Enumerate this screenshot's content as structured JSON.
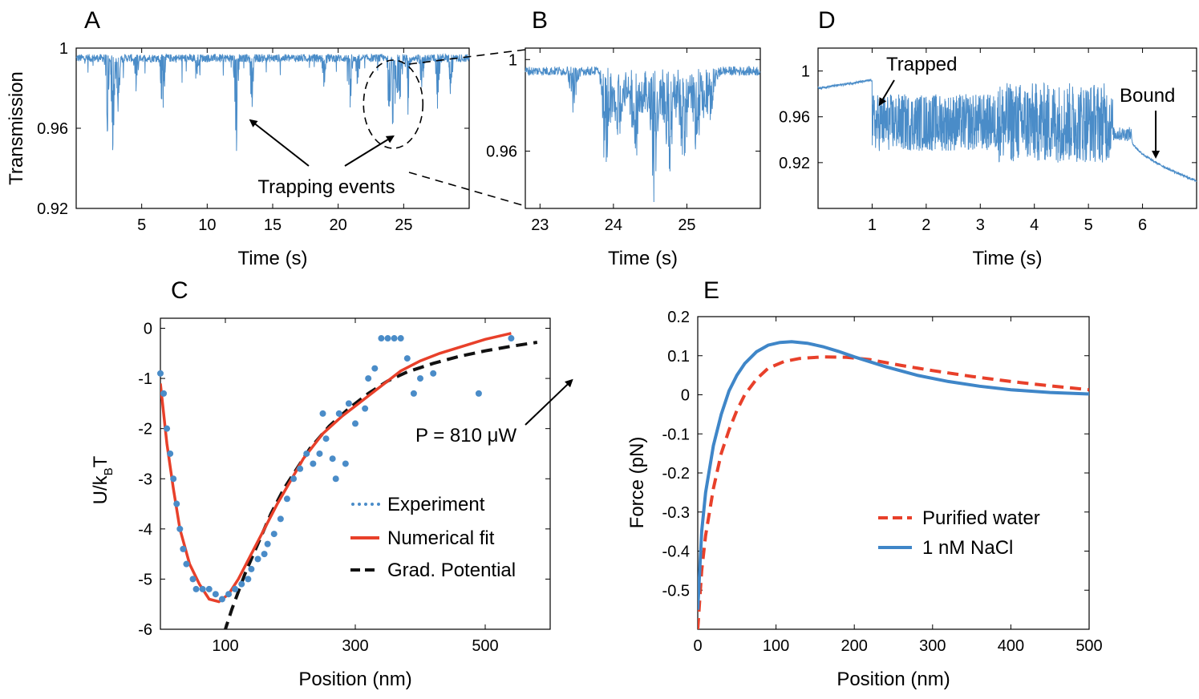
{
  "colors": {
    "trace": "#4a8cc8",
    "fit": "#e8402a",
    "potential": "#111111",
    "force_water": "#e8402a",
    "force_nacl": "#3f86c8"
  },
  "chart_data": [
    {
      "id": "A",
      "type": "line",
      "letter": "A",
      "xlabel": "Time (s)",
      "ylabel": "Transmission",
      "xlim": [
        0,
        30
      ],
      "ylim": [
        0.92,
        1.0
      ],
      "xticks": [
        5,
        10,
        15,
        20,
        25
      ],
      "yticks": [
        0.92,
        0.96,
        1
      ],
      "ytick_labels": [
        "0.92",
        "0.96",
        "1"
      ],
      "baseline": 0.995,
      "events": [
        {
          "t": 2.4,
          "depth": 0.038
        },
        {
          "t": 2.8,
          "depth": 0.045
        },
        {
          "t": 3.2,
          "depth": 0.03
        },
        {
          "t": 4.6,
          "depth": 0.02
        },
        {
          "t": 6.6,
          "depth": 0.05
        },
        {
          "t": 9.2,
          "depth": 0.012
        },
        {
          "t": 12.2,
          "depth": 0.06
        },
        {
          "t": 13.4,
          "depth": 0.025
        },
        {
          "t": 18.9,
          "depth": 0.015
        },
        {
          "t": 20.9,
          "depth": 0.027
        },
        {
          "t": 21.5,
          "depth": 0.02
        },
        {
          "t": 23.9,
          "depth": 0.03
        },
        {
          "t": 24.2,
          "depth": 0.038
        },
        {
          "t": 24.6,
          "depth": 0.04
        },
        {
          "t": 25.3,
          "depth": 0.03
        },
        {
          "t": 26.4,
          "depth": 0.02
        },
        {
          "t": 27.6,
          "depth": 0.025
        },
        {
          "t": 28.6,
          "depth": 0.018
        }
      ],
      "annotation": "Trapping events",
      "arrow_targets": [
        {
          "t": 13.3,
          "v": 0.964
        },
        {
          "t": 24.2,
          "v": 0.956
        }
      ]
    },
    {
      "id": "B",
      "type": "line",
      "letter": "B",
      "xlabel": "Time (s)",
      "ylabel": "",
      "xlim": [
        22.8,
        26.0
      ],
      "ylim": [
        0.935,
        1.005
      ],
      "xticks": [
        23,
        24,
        25
      ],
      "yticks": [
        0.96,
        1
      ],
      "ytick_labels": [
        "0.96",
        "1"
      ],
      "baseline": 0.995,
      "events": [
        {
          "t": 23.45,
          "depth": 0.018
        },
        {
          "t": 23.9,
          "depth": 0.035
        },
        {
          "t": 24.05,
          "depth": 0.028
        },
        {
          "t": 24.3,
          "depth": 0.03
        },
        {
          "t": 24.55,
          "depth": 0.04
        },
        {
          "t": 24.75,
          "depth": 0.032
        },
        {
          "t": 24.95,
          "depth": 0.03
        },
        {
          "t": 25.15,
          "depth": 0.025
        },
        {
          "t": 25.35,
          "depth": 0.015
        }
      ]
    },
    {
      "id": "D",
      "type": "line",
      "letter": "D",
      "xlabel": "Time (s)",
      "ylabel": "",
      "xlim": [
        0,
        7
      ],
      "ylim": [
        0.88,
        1.02
      ],
      "xticks": [
        1,
        2,
        3,
        4,
        5,
        6
      ],
      "yticks": [
        0.92,
        0.96,
        1
      ],
      "ytick_labels": [
        "0.92",
        "0.96",
        "1"
      ],
      "segments": {
        "pre": {
          "from": 0,
          "to": 1.0,
          "start": 0.985,
          "end": 0.992
        },
        "trapped": {
          "from": 1.0,
          "to": 5.45,
          "mean": 0.955,
          "amp": 0.025
        },
        "late": {
          "from": 5.45,
          "to": 5.8,
          "mean": 0.945
        },
        "bound": {
          "from": 5.8,
          "to": 7.0,
          "start": 0.94,
          "end": 0.904
        }
      },
      "annotations": [
        {
          "text": "Trapped",
          "target_t": 1.05,
          "target_v": 0.965
        },
        {
          "text": "Bound",
          "target_t": 6.2,
          "target_v": 0.915
        }
      ]
    },
    {
      "id": "C",
      "type": "scatter",
      "letter": "C",
      "xlabel": "Position (nm)",
      "ylabel": "U/k",
      "ylabel_sub": "B",
      "ylabel_end": "T",
      "xlim": [
        0,
        600
      ],
      "ylim": [
        -6,
        0.2
      ],
      "xticks": [
        100,
        300,
        500
      ],
      "yticks": [
        -6,
        -5,
        -4,
        -3,
        -2,
        -1,
        0
      ],
      "experiment": [
        [
          0,
          -0.9
        ],
        [
          5,
          -1.3
        ],
        [
          10,
          -2.0
        ],
        [
          15,
          -2.5
        ],
        [
          20,
          -3.0
        ],
        [
          25,
          -3.5
        ],
        [
          30,
          -4.0
        ],
        [
          35,
          -4.4
        ],
        [
          40,
          -4.7
        ],
        [
          50,
          -5.0
        ],
        [
          55,
          -5.2
        ],
        [
          65,
          -5.2
        ],
        [
          75,
          -5.2
        ],
        [
          85,
          -5.3
        ],
        [
          95,
          -5.4
        ],
        [
          105,
          -5.3
        ],
        [
          115,
          -5.2
        ],
        [
          125,
          -5.1
        ],
        [
          135,
          -5.0
        ],
        [
          140,
          -4.8
        ],
        [
          150,
          -4.6
        ],
        [
          160,
          -4.5
        ],
        [
          165,
          -4.3
        ],
        [
          175,
          -4.1
        ],
        [
          185,
          -3.8
        ],
        [
          195,
          -3.4
        ],
        [
          205,
          -3.0
        ],
        [
          215,
          -2.8
        ],
        [
          225,
          -2.5
        ],
        [
          235,
          -2.7
        ],
        [
          245,
          -2.5
        ],
        [
          250,
          -1.7
        ],
        [
          255,
          -2.2
        ],
        [
          265,
          -2.6
        ],
        [
          270,
          -3.0
        ],
        [
          275,
          -1.7
        ],
        [
          285,
          -2.7
        ],
        [
          290,
          -1.5
        ],
        [
          300,
          -1.9
        ],
        [
          315,
          -1.6
        ],
        [
          320,
          -1.0
        ],
        [
          330,
          -0.8
        ],
        [
          340,
          -0.2
        ],
        [
          350,
          -0.2
        ],
        [
          360,
          -0.2
        ],
        [
          370,
          -0.2
        ],
        [
          380,
          -0.6
        ],
        [
          390,
          -1.3
        ],
        [
          400,
          -1.0
        ],
        [
          420,
          -0.9
        ],
        [
          490,
          -1.3
        ],
        [
          540,
          -0.2
        ]
      ],
      "fit": [
        [
          0,
          -1.1
        ],
        [
          10,
          -2.3
        ],
        [
          20,
          -3.2
        ],
        [
          30,
          -4.0
        ],
        [
          45,
          -4.7
        ],
        [
          60,
          -5.1
        ],
        [
          75,
          -5.4
        ],
        [
          90,
          -5.45
        ],
        [
          105,
          -5.3
        ],
        [
          120,
          -5.0
        ],
        [
          140,
          -4.5
        ],
        [
          160,
          -4.0
        ],
        [
          180,
          -3.5
        ],
        [
          200,
          -3.05
        ],
        [
          220,
          -2.6
        ],
        [
          250,
          -2.1
        ],
        [
          280,
          -1.75
        ],
        [
          310,
          -1.45
        ],
        [
          340,
          -1.15
        ],
        [
          370,
          -0.85
        ],
        [
          400,
          -0.65
        ],
        [
          430,
          -0.5
        ],
        [
          460,
          -0.38
        ],
        [
          500,
          -0.22
        ],
        [
          540,
          -0.1
        ]
      ],
      "potential": [
        [
          90,
          -6.4
        ],
        [
          110,
          -5.6
        ],
        [
          130,
          -4.9
        ],
        [
          150,
          -4.3
        ],
        [
          170,
          -3.7
        ],
        [
          190,
          -3.2
        ],
        [
          210,
          -2.8
        ],
        [
          230,
          -2.4
        ],
        [
          260,
          -1.95
        ],
        [
          290,
          -1.6
        ],
        [
          320,
          -1.3
        ],
        [
          350,
          -1.05
        ],
        [
          380,
          -0.87
        ],
        [
          420,
          -0.7
        ],
        [
          460,
          -0.56
        ],
        [
          500,
          -0.45
        ],
        [
          540,
          -0.36
        ],
        [
          580,
          -0.28
        ]
      ],
      "power_label": "P = 810 μW",
      "power_target": [
        525,
        -0.65
      ],
      "legend": [
        {
          "key": "experiment",
          "label": "Experiment"
        },
        {
          "key": "fit",
          "label": "Numerical fit"
        },
        {
          "key": "potential",
          "label": "Grad. Potential"
        }
      ]
    },
    {
      "id": "E",
      "type": "line",
      "letter": "E",
      "xlabel": "Position (nm)",
      "ylabel": "Force (pN)",
      "xlim": [
        0,
        500
      ],
      "ylim": [
        -0.6,
        0.2
      ],
      "xticks": [
        0,
        100,
        200,
        300,
        400,
        500
      ],
      "yticks": [
        -0.5,
        -0.4,
        -0.3,
        -0.2,
        -0.1,
        0,
        0.1,
        0.2
      ],
      "ytick_labels": [
        "-0.5",
        "-0.4",
        "-0.3",
        "-0.2",
        "-0.1",
        "0",
        "0.1",
        "0.2"
      ],
      "series": [
        {
          "key": "force_water",
          "name": "Purified water",
          "dash": true,
          "points": [
            [
              0,
              -0.6
            ],
            [
              5,
              -0.45
            ],
            [
              10,
              -0.36
            ],
            [
              20,
              -0.24
            ],
            [
              30,
              -0.15
            ],
            [
              40,
              -0.09
            ],
            [
              50,
              -0.04
            ],
            [
              60,
              0.0
            ],
            [
              75,
              0.04
            ],
            [
              90,
              0.068
            ],
            [
              110,
              0.085
            ],
            [
              130,
              0.093
            ],
            [
              160,
              0.097
            ],
            [
              190,
              0.096
            ],
            [
              220,
              0.09
            ],
            [
              260,
              0.075
            ],
            [
              300,
              0.062
            ],
            [
              350,
              0.047
            ],
            [
              400,
              0.034
            ],
            [
              450,
              0.023
            ],
            [
              500,
              0.013
            ]
          ]
        },
        {
          "key": "force_nacl",
          "name": "1 nM NaCl",
          "dash": false,
          "points": [
            [
              0,
              -0.55
            ],
            [
              5,
              -0.35
            ],
            [
              10,
              -0.25
            ],
            [
              20,
              -0.13
            ],
            [
              30,
              -0.05
            ],
            [
              40,
              0.01
            ],
            [
              50,
              0.05
            ],
            [
              60,
              0.08
            ],
            [
              75,
              0.11
            ],
            [
              90,
              0.127
            ],
            [
              105,
              0.134
            ],
            [
              120,
              0.136
            ],
            [
              140,
              0.132
            ],
            [
              160,
              0.123
            ],
            [
              180,
              0.111
            ],
            [
              200,
              0.097
            ],
            [
              240,
              0.072
            ],
            [
              280,
              0.05
            ],
            [
              320,
              0.034
            ],
            [
              360,
              0.022
            ],
            [
              400,
              0.013
            ],
            [
              450,
              0.006
            ],
            [
              500,
              0.002
            ]
          ]
        }
      ]
    }
  ]
}
